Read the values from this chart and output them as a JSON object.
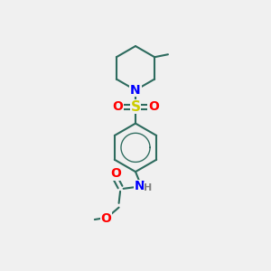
{
  "background_color": "#f0f0f0",
  "atom_colors": {
    "C": "#2d6b5e",
    "N": "#0000ff",
    "O": "#ff0000",
    "S": "#cccc00",
    "H": "#808080"
  },
  "bond_color": "#2d6b5e",
  "bond_width": 1.5,
  "figsize": [
    3.0,
    3.0
  ],
  "dpi": 100
}
